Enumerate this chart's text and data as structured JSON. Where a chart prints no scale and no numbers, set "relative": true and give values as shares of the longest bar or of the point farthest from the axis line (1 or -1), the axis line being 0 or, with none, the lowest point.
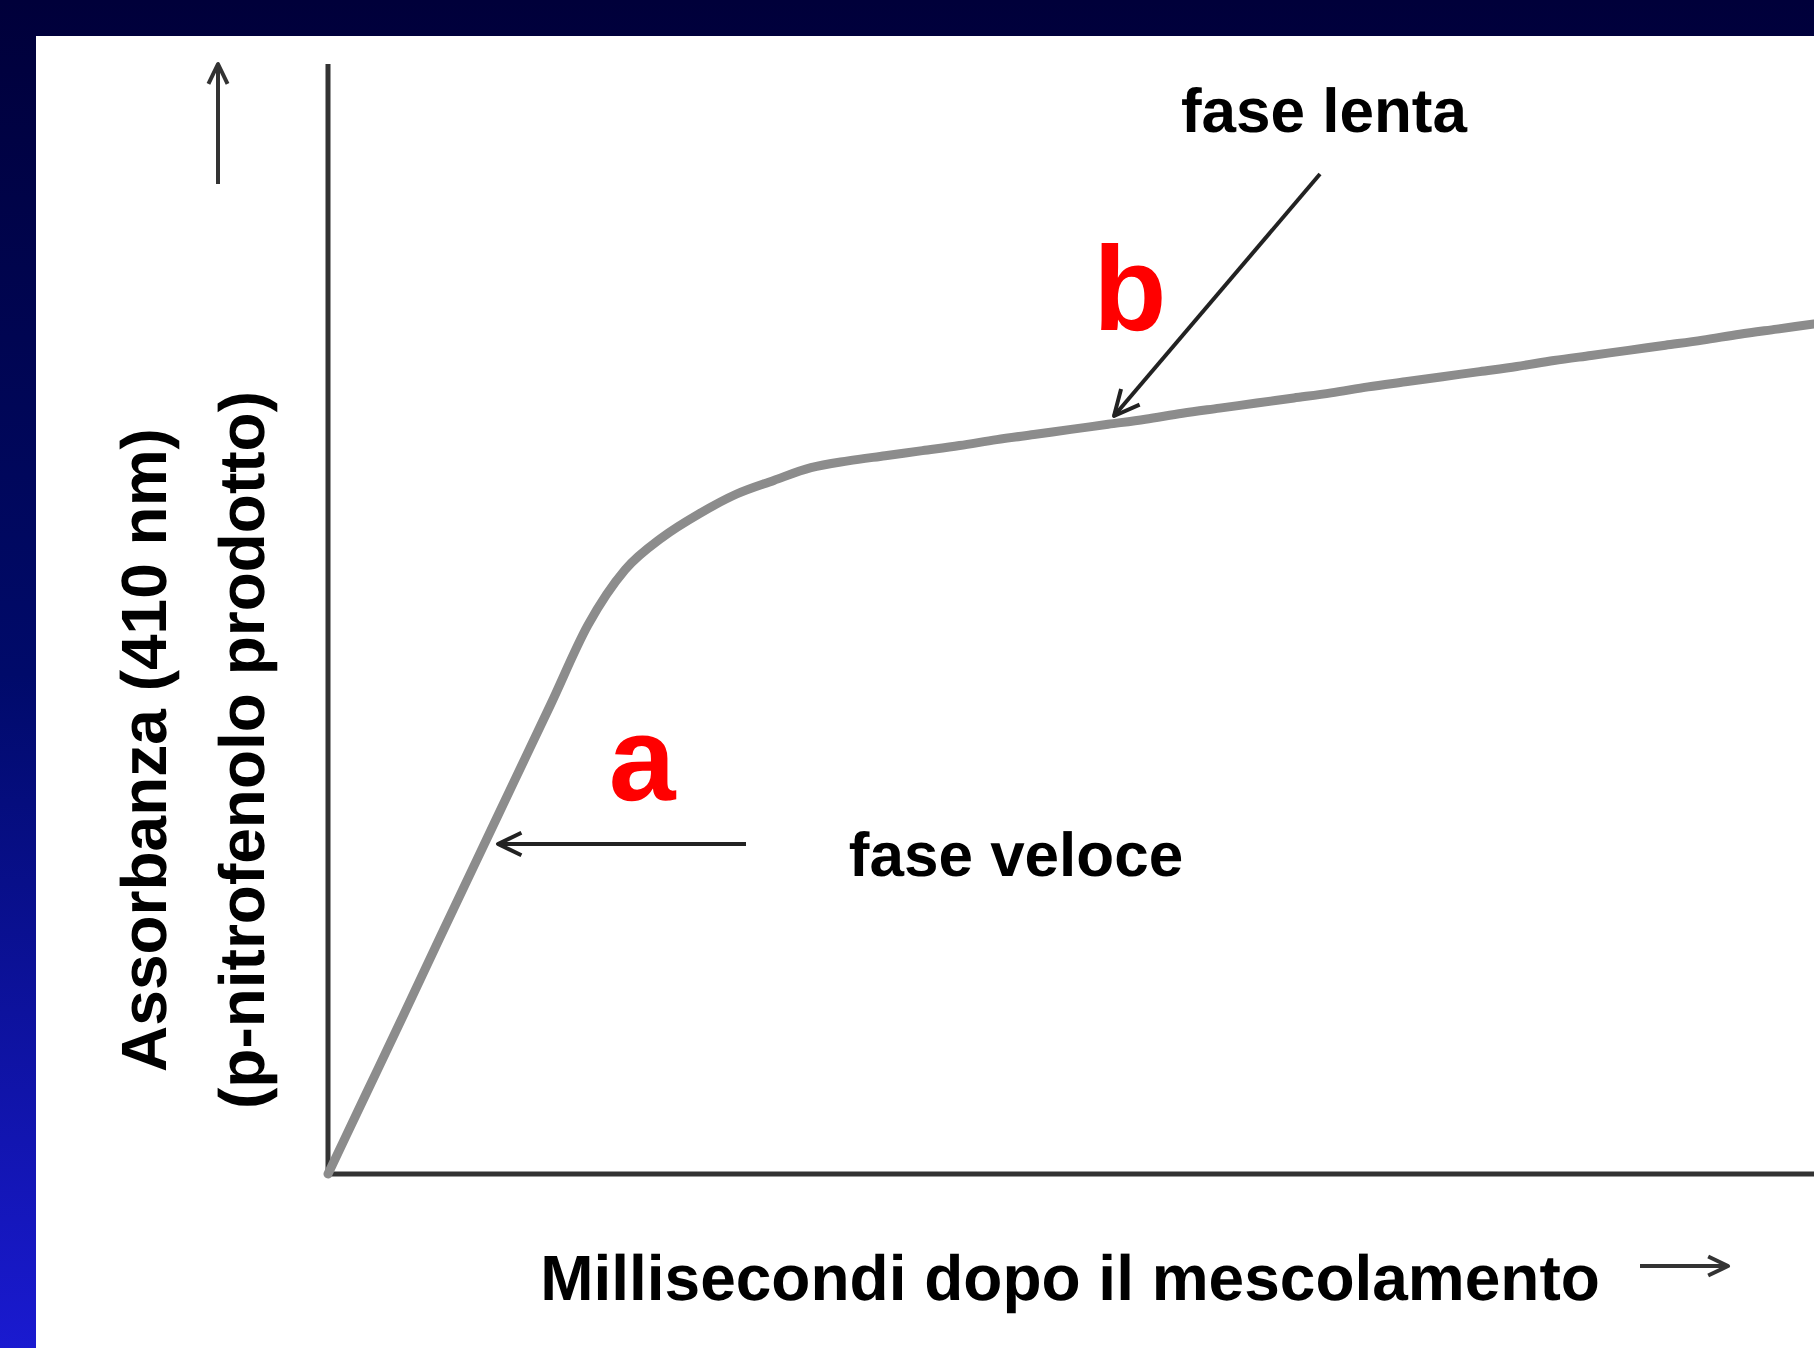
{
  "chart_data": {
    "type": "line",
    "relative": true,
    "xlabel": "Millisecondi dopo il mescolamento",
    "ylabel": "Assorbanza (410 nm)\n(p-nitrofenolo prodotto)",
    "categories": [
      null,
      null,
      null,
      null,
      null,
      null,
      null,
      null,
      null,
      null,
      null,
      null,
      null,
      null,
      null,
      null,
      null,
      null,
      null,
      null,
      null,
      null,
      null,
      null,
      null,
      null,
      null,
      null,
      null,
      null,
      null,
      null,
      null,
      null,
      null,
      null,
      null,
      null,
      null,
      null,
      null
    ],
    "series": [
      {
        "color": "#8c8c8c",
        "values": [
          0,
          0.092,
          0.184,
          0.277,
          0.369,
          0.461,
          0.553,
          0.646,
          0.711,
          0.749,
          0.777,
          0.8,
          0.816,
          0.831,
          0.839,
          0.845,
          0.851,
          0.857,
          0.864,
          0.87,
          0.876,
          0.882,
          0.888,
          0.895,
          0.901,
          0.907,
          0.913,
          0.919,
          0.926,
          0.932,
          0.938,
          0.944,
          0.95,
          0.957,
          0.963,
          0.969,
          0.975,
          0.981,
          0.988,
          0.994,
          1
        ]
      }
    ],
    "annotations": [
      "a",
      "b",
      "fase veloce",
      "fase lenta"
    ]
  }
}
